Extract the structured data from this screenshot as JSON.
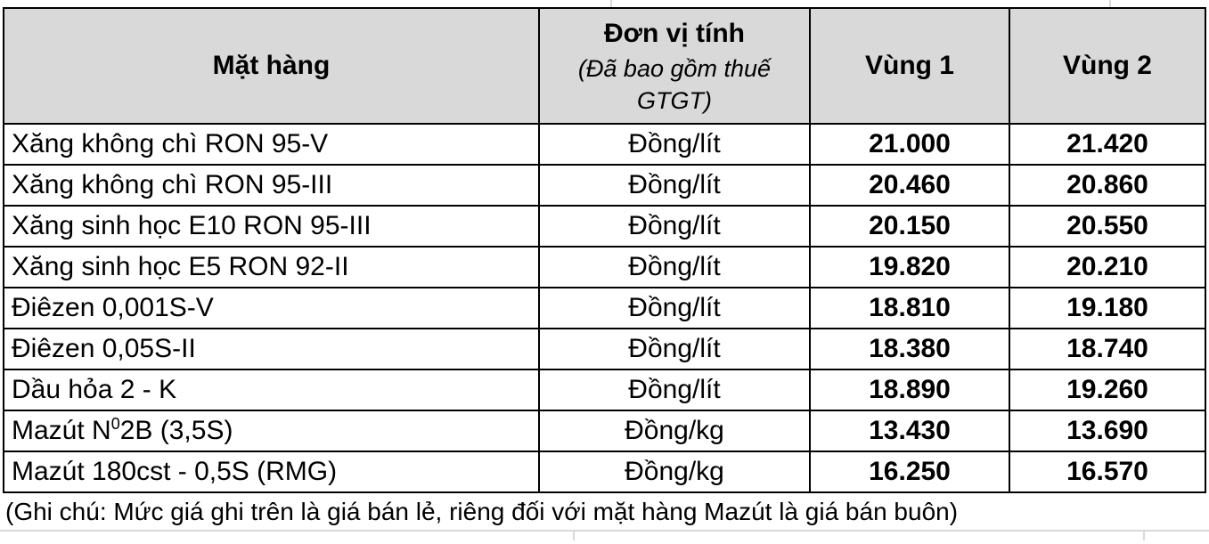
{
  "table": {
    "headers": {
      "product": "Mặt hàng",
      "unit_title": "Đơn vị tính",
      "unit_subtitle": "(Đã bao gồm thuế GTGT)",
      "region1": "Vùng 1",
      "region2": "Vùng 2"
    },
    "rows": [
      {
        "name": "Xăng không chì RON 95-V",
        "unit": "Đồng/lít",
        "region1": "21.000",
        "region2": "21.420"
      },
      {
        "name": "Xăng không chì RON 95-III",
        "unit": "Đồng/lít",
        "region1": "20.460",
        "region2": "20.860"
      },
      {
        "name": "Xăng sinh học E10 RON 95-III",
        "unit": "Đồng/lít",
        "region1": "20.150",
        "region2": "20.550"
      },
      {
        "name": "Xăng sinh học E5 RON 92-II",
        "unit": "Đồng/lít",
        "region1": "19.820",
        "region2": "20.210"
      },
      {
        "name": "Điêzen 0,001S-V",
        "unit": "Đồng/lít",
        "region1": "18.810",
        "region2": "19.180"
      },
      {
        "name": "Điêzen 0,05S-II",
        "unit": "Đồng/lít",
        "region1": "18.380",
        "region2": "18.740"
      },
      {
        "name": "Dầu hỏa 2 - K",
        "unit": "Đồng/lít",
        "region1": "18.890",
        "region2": "19.260"
      },
      {
        "name": "Mazút N",
        "name_sup": "0",
        "name_rest": "2B (3,5S)",
        "unit": "Đồng/kg",
        "region1": "13.430",
        "region2": "13.690"
      },
      {
        "name": "Mazút 180cst - 0,5S (RMG)",
        "unit": "Đồng/kg",
        "region1": "16.250",
        "region2": "16.570"
      }
    ],
    "note": "(Ghi chú: Mức giá ghi trên là giá bán lẻ, riêng đối với mặt hàng Mazút là giá bán buôn)"
  },
  "colors": {
    "header_bg": "#d9d9d9",
    "table_border": "#000000",
    "gridline": "#d9d9d9",
    "text": "#000000",
    "background": "#ffffff"
  }
}
